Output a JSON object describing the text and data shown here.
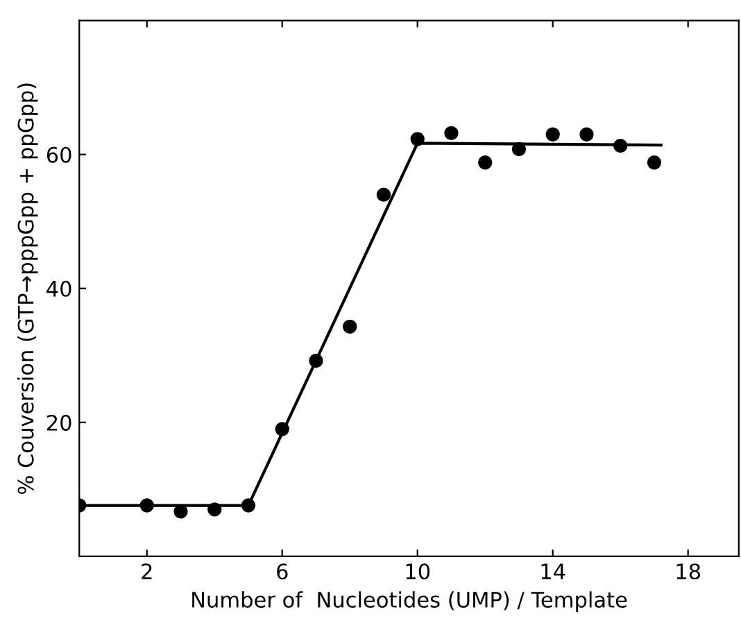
{
  "chart_data": {
    "type": "scatter",
    "xlabel": "Number of  Nucleotides (UMP) / Template",
    "ylabel": "% Couversion (GTP→pppGpp + ppGpp)",
    "xlim": [
      0,
      19.5
    ],
    "xticks": [
      2,
      6,
      10,
      14,
      18
    ],
    "ylim": [
      0,
      80
    ],
    "yticks": [
      20,
      40,
      60
    ],
    "grid": false,
    "legend": false,
    "series": [
      {
        "marker": "circle",
        "color": "#000000",
        "x": [
          0,
          2,
          3,
          4,
          5,
          6,
          7,
          8,
          9,
          10,
          11,
          12,
          13,
          14,
          15,
          16,
          17
        ],
        "values": [
          7.6,
          7.6,
          6.7,
          7.0,
          7.6,
          19.0,
          29.2,
          34.3,
          54.0,
          62.3,
          63.2,
          58.8,
          60.8,
          63.0,
          63.0,
          61.3,
          58.8
        ]
      },
      {
        "type": "line",
        "marker": "none",
        "color": "#000000",
        "line_style": "solid",
        "x": [
          0,
          5,
          10,
          17.2
        ],
        "values": [
          7.6,
          7.6,
          61.7,
          61.4
        ]
      }
    ]
  }
}
